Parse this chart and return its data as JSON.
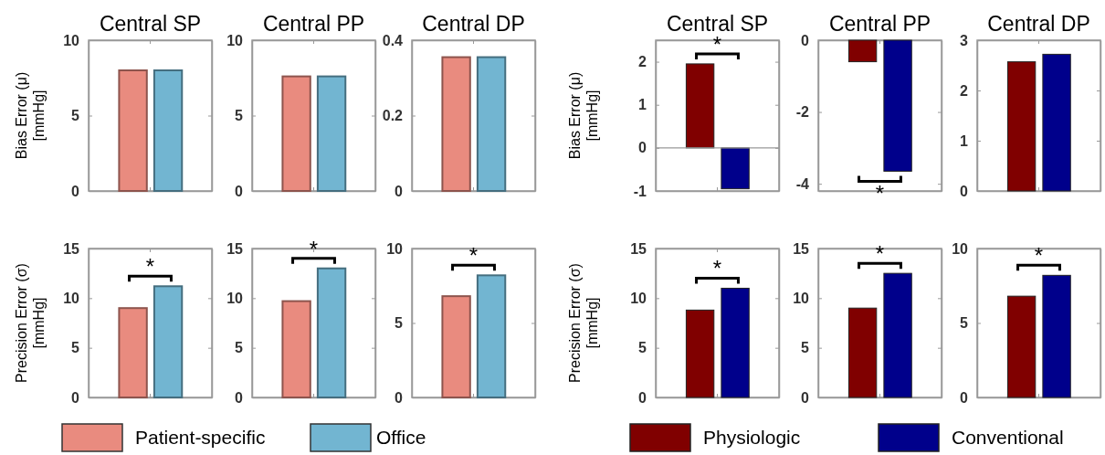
{
  "chart_data": [
    {
      "type": "bar",
      "title": "Central SP",
      "ylabel": "Bias Error (μ) [mmHg]",
      "categories": [
        null
      ],
      "ylim": [
        0,
        10
      ],
      "yticks": [
        0,
        5,
        10
      ],
      "series": [
        {
          "color": "#e98b7f",
          "values": [
            8.0
          ]
        },
        {
          "color": "#72b5d1",
          "values": [
            8.0
          ]
        }
      ]
    },
    {
      "type": "bar",
      "title": "Central PP",
      "categories": [
        null
      ],
      "ylim": [
        0,
        10
      ],
      "yticks": [
        0,
        5,
        10
      ],
      "series": [
        {
          "color": "#e98b7f",
          "values": [
            7.6
          ]
        },
        {
          "color": "#72b5d1",
          "values": [
            7.6
          ]
        }
      ]
    },
    {
      "type": "bar",
      "title": "Central DP",
      "categories": [
        null
      ],
      "ylim": [
        0,
        0.4
      ],
      "yticks": [
        0,
        0.2,
        0.4
      ],
      "series": [
        {
          "color": "#e98b7f",
          "values": [
            0.355
          ]
        },
        {
          "color": "#72b5d1",
          "values": [
            0.355
          ]
        }
      ]
    },
    {
      "type": "bar",
      "ylabel": "Precision Error (σ) [mmHg]",
      "categories": [
        null
      ],
      "ylim": [
        0,
        15
      ],
      "yticks": [
        0,
        5,
        10,
        15
      ],
      "legend": "bottom",
      "annotations": [
        "*"
      ],
      "series": [
        {
          "name": "Patient-specific",
          "color": "#e98b7f",
          "values": [
            9.0
          ]
        },
        {
          "name": "Office",
          "color": "#72b5d1",
          "values": [
            11.2
          ]
        }
      ]
    },
    {
      "type": "bar",
      "categories": [
        null
      ],
      "ylim": [
        0,
        15
      ],
      "yticks": [
        0,
        5,
        10,
        15
      ],
      "annotations": [
        "*"
      ],
      "series": [
        {
          "color": "#e98b7f",
          "values": [
            9.7
          ]
        },
        {
          "color": "#72b5d1",
          "values": [
            13.0
          ]
        }
      ]
    },
    {
      "type": "bar",
      "categories": [
        null
      ],
      "ylim": [
        0,
        10
      ],
      "yticks": [
        0,
        5,
        10
      ],
      "annotations": [
        "*"
      ],
      "series": [
        {
          "color": "#e98b7f",
          "values": [
            6.8
          ]
        },
        {
          "color": "#72b5d1",
          "values": [
            8.2
          ]
        }
      ]
    },
    {
      "type": "bar",
      "title": "Central SP",
      "ylabel": "Bias Error (μ) [mmHg]",
      "categories": [
        null
      ],
      "ylim": [
        -1,
        2.5
      ],
      "yticks": [
        -1,
        0,
        1,
        2
      ],
      "annotations": [
        "*"
      ],
      "series": [
        {
          "color": "#800000",
          "values": [
            1.95
          ]
        },
        {
          "color": "#00008b",
          "values": [
            -0.95
          ]
        }
      ]
    },
    {
      "type": "bar",
      "title": "Central PP",
      "categories": [
        null
      ],
      "ylim": [
        -4.2,
        0
      ],
      "yticks": [
        -4,
        -2,
        0
      ],
      "annotations": [
        "*"
      ],
      "series": [
        {
          "color": "#800000",
          "values": [
            -0.6
          ]
        },
        {
          "color": "#00008b",
          "values": [
            -3.65
          ]
        }
      ]
    },
    {
      "type": "bar",
      "title": "Central DP",
      "categories": [
        null
      ],
      "ylim": [
        0,
        3
      ],
      "yticks": [
        0,
        1,
        2,
        3
      ],
      "series": [
        {
          "color": "#800000",
          "values": [
            2.57
          ]
        },
        {
          "color": "#00008b",
          "values": [
            2.72
          ]
        }
      ]
    },
    {
      "type": "bar",
      "ylabel": "Precision Error (σ) [mmHg]",
      "categories": [
        null
      ],
      "ylim": [
        0,
        15
      ],
      "yticks": [
        0,
        5,
        10,
        15
      ],
      "legend": "bottom",
      "annotations": [
        "*"
      ],
      "series": [
        {
          "name": "Physiologic",
          "color": "#800000",
          "values": [
            8.8
          ]
        },
        {
          "name": "Conventional",
          "color": "#00008b",
          "values": [
            11.0
          ]
        }
      ]
    },
    {
      "type": "bar",
      "categories": [
        null
      ],
      "ylim": [
        0,
        15
      ],
      "yticks": [
        0,
        5,
        10,
        15
      ],
      "annotations": [
        "*"
      ],
      "series": [
        {
          "color": "#800000",
          "values": [
            9.0
          ]
        },
        {
          "color": "#00008b",
          "values": [
            12.5
          ]
        }
      ]
    },
    {
      "type": "bar",
      "categories": [
        null
      ],
      "ylim": [
        0,
        10
      ],
      "yticks": [
        0,
        5,
        10
      ],
      "annotations": [
        "*"
      ],
      "series": [
        {
          "color": "#800000",
          "values": [
            6.8
          ]
        },
        {
          "color": "#00008b",
          "values": [
            8.2
          ]
        }
      ]
    }
  ]
}
